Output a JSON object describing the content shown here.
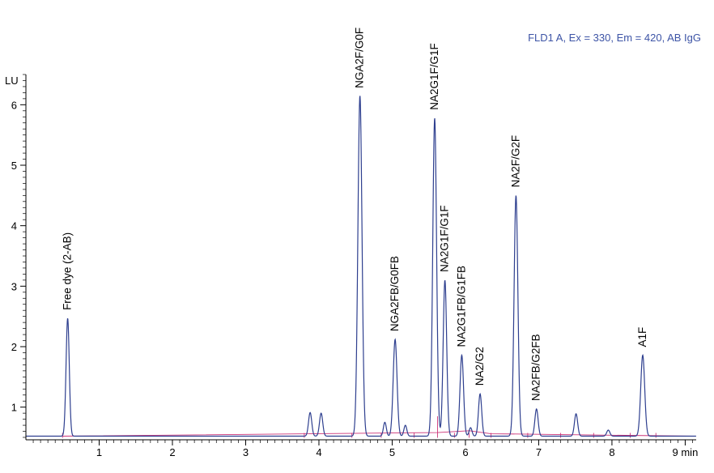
{
  "chart_data": {
    "type": "line",
    "title": "FLD1 A, Ex = 330, Em = 420, AB IgG",
    "title_color": "#3d54a6",
    "trace_color": "#2e3f8f",
    "baseline_color": "#cc3377",
    "ylabel": "LU",
    "xunit": "min",
    "xlim": [
      0,
      9.15
    ],
    "ylim": [
      0.5,
      6.5
    ],
    "yaxis_origin": 0.52,
    "xticks": [
      1,
      2,
      3,
      4,
      5,
      6,
      7,
      8,
      9
    ],
    "xtick_labels": [
      "1",
      "2",
      "3",
      "4",
      "5",
      "6",
      "7",
      "8",
      "9 min"
    ],
    "yticks": [
      1,
      2,
      3,
      4,
      5,
      6
    ],
    "ytick_labels": [
      "1",
      "2",
      "3",
      "4",
      "5",
      "6"
    ],
    "baseline_level": 0.52,
    "peaks": [
      {
        "t": 0.57,
        "h": 2.47,
        "w": 0.022
      },
      {
        "t": 3.88,
        "h": 0.91,
        "w": 0.022
      },
      {
        "t": 4.03,
        "h": 0.9,
        "w": 0.022
      },
      {
        "t": 4.56,
        "h": 6.15,
        "w": 0.028
      },
      {
        "t": 4.9,
        "h": 0.75,
        "w": 0.02
      },
      {
        "t": 5.04,
        "h": 2.12,
        "w": 0.026
      },
      {
        "t": 5.18,
        "h": 0.7,
        "w": 0.02
      },
      {
        "t": 5.58,
        "h": 5.78,
        "w": 0.026
      },
      {
        "t": 5.72,
        "h": 3.1,
        "w": 0.024
      },
      {
        "t": 5.95,
        "h": 1.86,
        "w": 0.024
      },
      {
        "t": 6.07,
        "h": 0.66,
        "w": 0.02
      },
      {
        "t": 6.2,
        "h": 1.22,
        "w": 0.022
      },
      {
        "t": 6.69,
        "h": 4.5,
        "w": 0.026
      },
      {
        "t": 6.97,
        "h": 0.97,
        "w": 0.022
      },
      {
        "t": 7.51,
        "h": 0.89,
        "w": 0.022
      },
      {
        "t": 7.95,
        "h": 0.62,
        "w": 0.022
      },
      {
        "t": 8.42,
        "h": 1.86,
        "w": 0.027
      }
    ],
    "annotations": [
      {
        "text": "Free dye (2-AB)",
        "t": 0.57,
        "y": 2.55
      },
      {
        "text": "NGA2F/G0F",
        "t": 4.56,
        "y": 6.22
      },
      {
        "text": "NGA2FB/G0FB",
        "t": 5.04,
        "y": 2.2
      },
      {
        "text": "NA2G1F/G1F",
        "t": 5.58,
        "y": 5.86
      },
      {
        "text": "NA2G1F/G1F",
        "t": 5.72,
        "y": 3.18
      },
      {
        "text": "NA2G1FB/G1FB",
        "t": 5.95,
        "y": 1.94
      },
      {
        "text": "NA2/G2",
        "t": 6.2,
        "y": 1.3
      },
      {
        "text": "NA2F/G2F",
        "t": 6.69,
        "y": 4.58
      },
      {
        "text": "NA2FB/G2FB",
        "t": 6.97,
        "y": 1.05
      },
      {
        "text": "A1F",
        "t": 8.42,
        "y": 1.94
      }
    ]
  }
}
